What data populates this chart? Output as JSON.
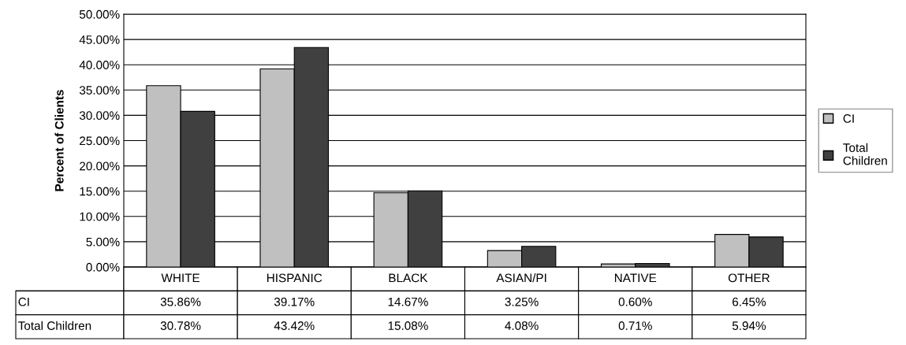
{
  "chart_data": {
    "type": "bar",
    "ylabel": "Percent of Clients",
    "categories": [
      "WHITE",
      "HISPANIC",
      "BLACK",
      "ASIAN/PI",
      "NATIVE",
      "OTHER"
    ],
    "series": [
      {
        "name": "CI",
        "color": "#c0c0c0",
        "values": [
          35.86,
          39.17,
          14.67,
          3.25,
          0.6,
          6.45
        ],
        "value_labels": [
          "35.86%",
          "39.17%",
          "14.67%",
          "3.25%",
          "0.60%",
          "6.45%"
        ]
      },
      {
        "name": "Total Children",
        "color": "#404040",
        "values": [
          30.78,
          43.42,
          15.08,
          4.08,
          0.71,
          5.94
        ],
        "value_labels": [
          "30.78%",
          "43.42%",
          "15.08%",
          "4.08%",
          "0.71%",
          "5.94%"
        ]
      }
    ],
    "ylim": [
      0,
      50
    ],
    "yticks": [
      {
        "value": 0,
        "label": "0.00%"
      },
      {
        "value": 5,
        "label": "5.00%"
      },
      {
        "value": 10,
        "label": "10.00%"
      },
      {
        "value": 15,
        "label": "15.00%"
      },
      {
        "value": 20,
        "label": "20.00%"
      },
      {
        "value": 25,
        "label": "25.00%"
      },
      {
        "value": 30,
        "label": "30.00%"
      },
      {
        "value": 35,
        "label": "35.00%"
      },
      {
        "value": 40,
        "label": "40.00%"
      },
      {
        "value": 45,
        "label": "45.00%"
      },
      {
        "value": 50,
        "label": "50.00%"
      }
    ],
    "grid": "y",
    "legend": "right",
    "tick_labels": "y"
  }
}
